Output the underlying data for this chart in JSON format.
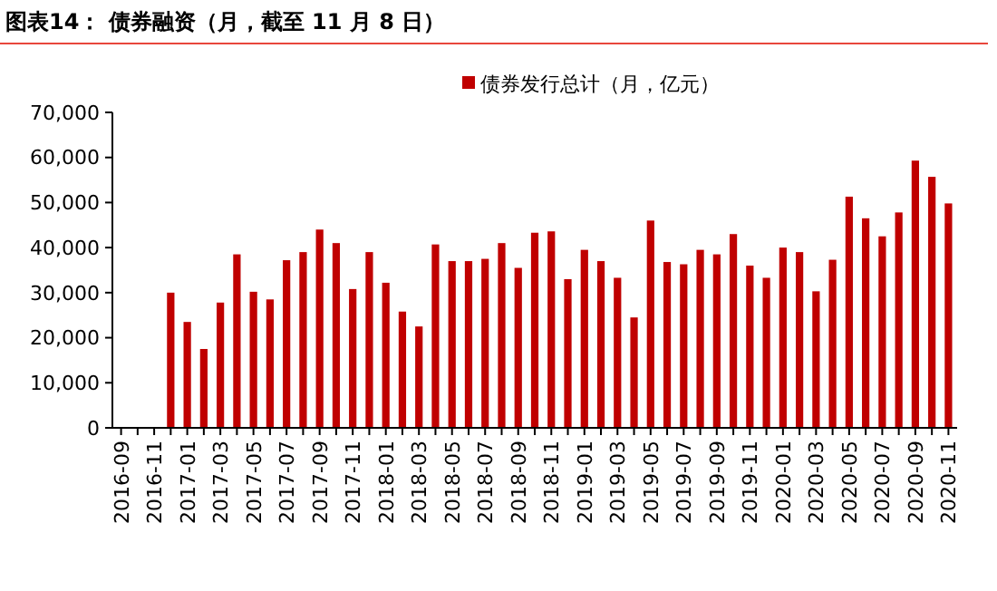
{
  "chart_data": {
    "type": "bar",
    "title": "图表14：  债券融资（月，截至 11 月 8 日）",
    "categories": [
      "2016-09",
      null,
      "2016-11",
      null,
      "2017-01",
      null,
      "2017-03",
      null,
      "2017-05",
      null,
      "2017-07",
      null,
      "2017-09",
      null,
      "2017-11",
      null,
      "2018-01",
      null,
      "2018-03",
      null,
      "2018-05",
      null,
      "2018-07",
      null,
      "2018-09",
      null,
      "2018-11",
      null,
      "2019-01",
      null,
      "2019-03",
      null,
      "2019-05",
      null,
      "2019-07",
      null,
      "2019-09",
      null,
      "2019-11",
      null,
      "2020-01",
      null,
      "2020-03",
      null,
      "2020-05",
      null,
      "2020-07",
      null,
      "2020-09",
      null,
      "2020-11"
    ],
    "series": [
      {
        "name": "债券发行总计（月，亿元）",
        "color": "#c00000",
        "values": [
          null,
          null,
          null,
          30000,
          23500,
          17500,
          27800,
          38500,
          30200,
          28500,
          37200,
          39000,
          44000,
          41000,
          30800,
          39000,
          32200,
          25800,
          22500,
          40700,
          37000,
          37000,
          37500,
          41000,
          35500,
          43300,
          43600,
          33000,
          39500,
          37000,
          33300,
          24500,
          46000,
          36800,
          36300,
          39500,
          38500,
          43000,
          36000,
          33300,
          40000,
          39000,
          30300,
          37300,
          51300,
          46500,
          42500,
          47800,
          59300,
          55700,
          49800
        ]
      }
    ],
    "ylim": [
      0,
      70000
    ],
    "yticks": [
      0,
      {
        "value": 10000,
        "label": "10,000"
      },
      {
        "value": 20000,
        "label": "20,000"
      },
      {
        "value": 30000,
        "label": "30,000"
      },
      {
        "value": 40000,
        "label": "40,000"
      },
      {
        "value": 50000,
        "label": "50,000"
      },
      {
        "value": 60000,
        "label": "60,000"
      },
      {
        "value": 70000,
        "label": "70,000"
      }
    ],
    "legend": "top"
  }
}
